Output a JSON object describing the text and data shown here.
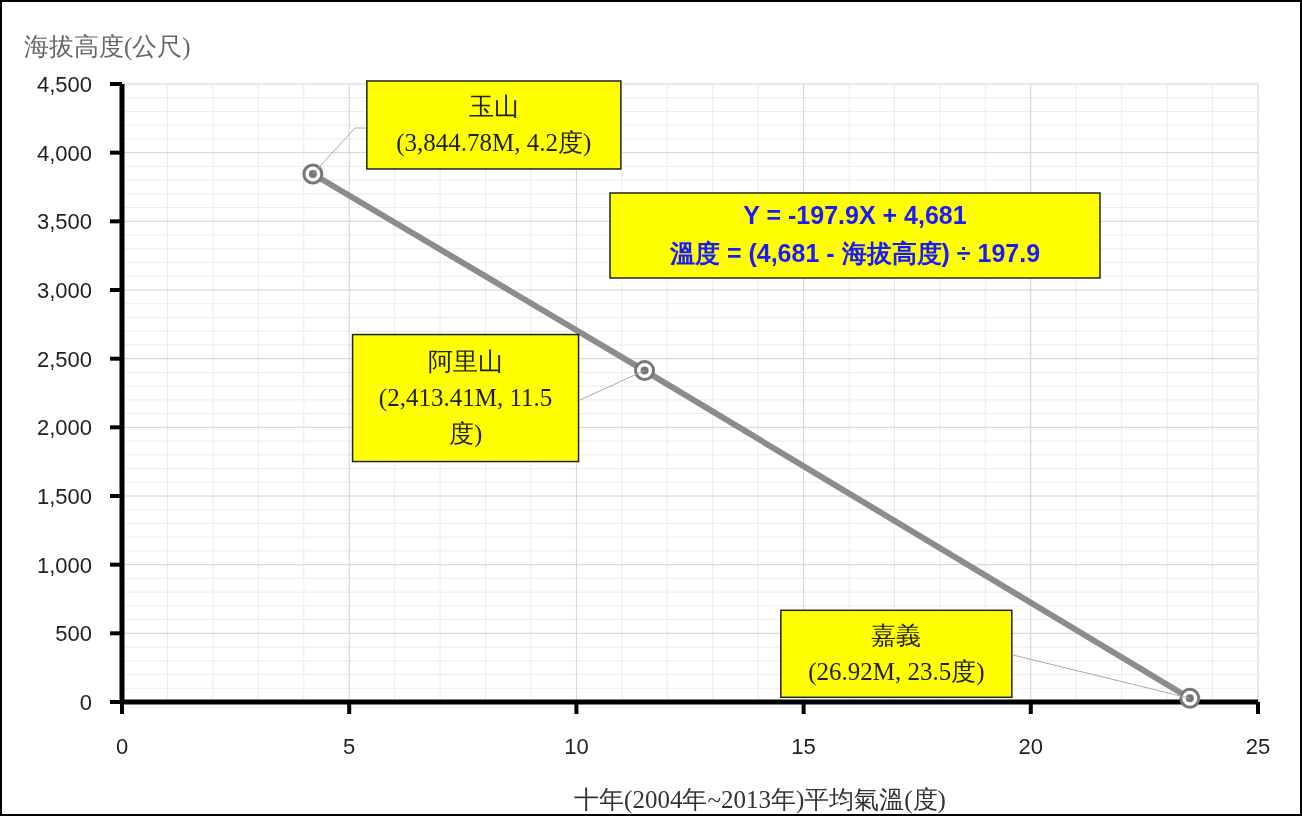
{
  "chart_data": {
    "type": "line",
    "xlabel": "十年(2004年~2013年)平均氣溫(度)",
    "ylabel": "海拔高度(公尺)",
    "series": [
      {
        "color": "#8c8c8c",
        "x": [
          4.2,
          11.5,
          23.5
        ],
        "values": [
          3844.78,
          2413.41,
          26.92
        ]
      }
    ],
    "marker": "circle",
    "line_style": "solid",
    "grid": true,
    "xlim": [
      0,
      25
    ],
    "xticks": [
      0,
      5,
      10,
      15,
      20,
      25
    ],
    "ylim": [
      0,
      4500
    ],
    "yticks": [
      0,
      500,
      {
        "value": 1000,
        "label": "1,000"
      },
      {
        "value": 1500,
        "label": "1,500"
      },
      {
        "value": 2000,
        "label": "2,000"
      },
      {
        "value": 2500,
        "label": "2,500"
      },
      {
        "value": 3000,
        "label": "3,000"
      },
      {
        "value": 3500,
        "label": "3,500"
      },
      {
        "value": 4000,
        "label": "4,000"
      },
      {
        "value": 4500,
        "label": "4,500"
      }
    ],
    "annotations": [
      {
        "text": "玉山\n(3,844.78M, 4.2度)",
        "x": 4.2,
        "y": 3844.78
      },
      {
        "text": "阿里山\n(2,413.41M, 11.5\n度)",
        "x": 11.5,
        "y": 2413.41
      },
      {
        "text": "嘉義\n(26.92M, 23.5度)",
        "x": 23.5,
        "y": 26.92
      },
      "Y = -197.9X + 4,681\n溫度 = (4,681 - 海拔高度) ÷ 197.9"
    ]
  }
}
